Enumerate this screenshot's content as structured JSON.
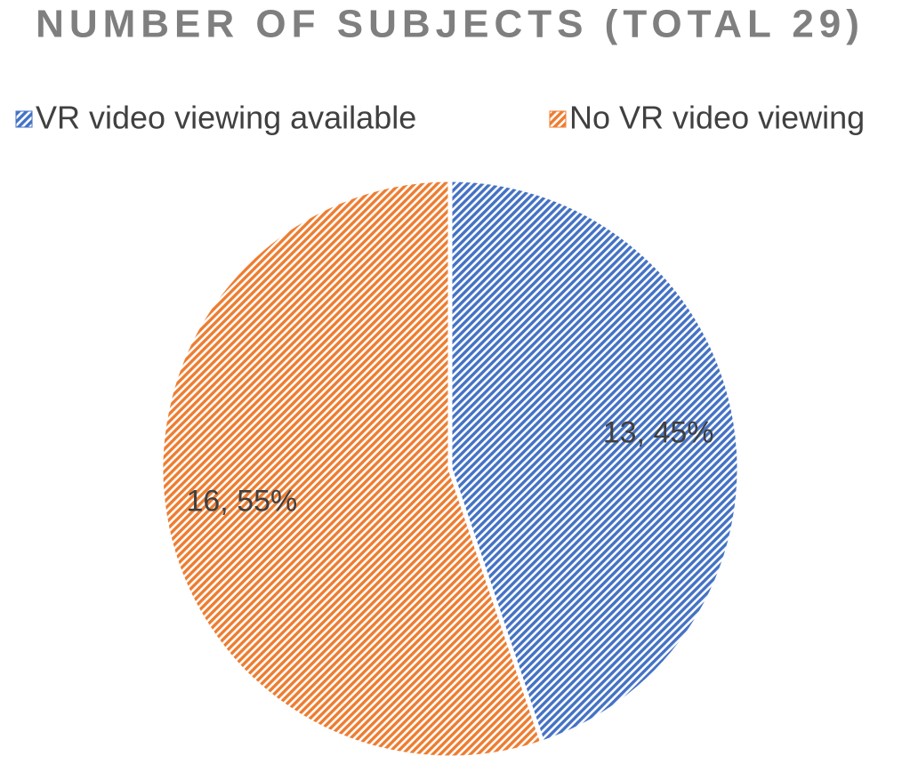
{
  "chart_data": {
    "type": "pie",
    "title": "NUMBER OF SUBJECTS (TOTAL 29)",
    "categories": [
      "VR video viewing available",
      "No VR video viewing"
    ],
    "values": [
      13,
      16
    ],
    "value_labels": [
      "13, 45%",
      "16, 55%"
    ],
    "colors": [
      "#4472c4",
      "#ed7d31"
    ],
    "legend": "top"
  }
}
